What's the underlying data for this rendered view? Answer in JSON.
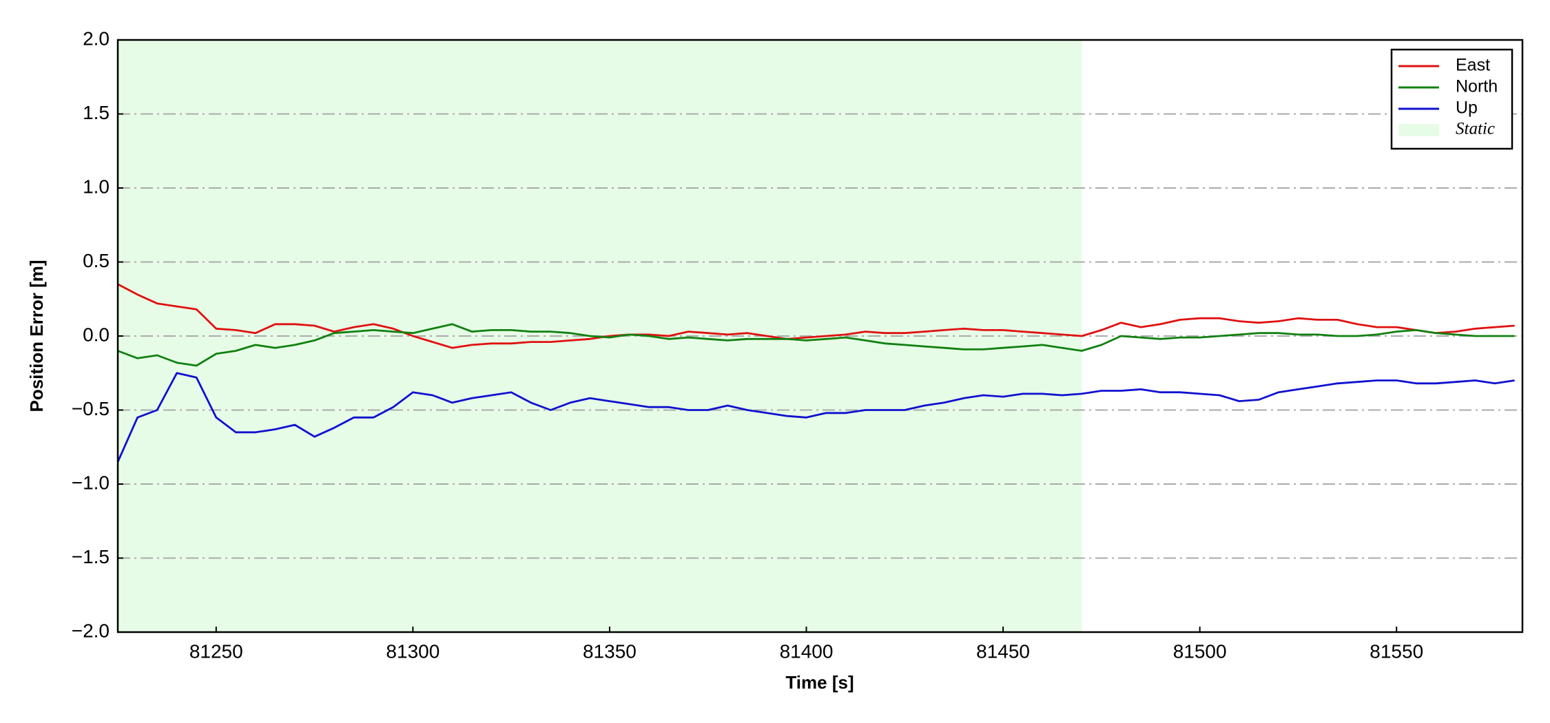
{
  "chart_data": {
    "type": "line",
    "x_label": "Time [s]",
    "y_label": "Position Error [m]",
    "x": [
      81225,
      81230,
      81235,
      81240,
      81245,
      81250,
      81255,
      81260,
      81265,
      81270,
      81275,
      81280,
      81285,
      81290,
      81295,
      81300,
      81305,
      81310,
      81315,
      81320,
      81325,
      81330,
      81335,
      81340,
      81345,
      81350,
      81355,
      81360,
      81365,
      81370,
      81375,
      81380,
      81385,
      81390,
      81395,
      81400,
      81405,
      81410,
      81415,
      81420,
      81425,
      81430,
      81435,
      81440,
      81445,
      81450,
      81455,
      81460,
      81465,
      81470,
      81475,
      81480,
      81485,
      81490,
      81495,
      81500,
      81505,
      81510,
      81515,
      81520,
      81525,
      81530,
      81535,
      81540,
      81545,
      81550,
      81555,
      81560,
      81565,
      81570,
      81575,
      81580
    ],
    "series": [
      {
        "name": "East",
        "color": "#e01010",
        "values": [
          0.35,
          0.28,
          0.22,
          0.2,
          0.18,
          0.05,
          0.04,
          0.02,
          0.08,
          0.08,
          0.07,
          0.03,
          0.06,
          0.08,
          0.05,
          0.0,
          -0.04,
          -0.08,
          -0.06,
          -0.05,
          -0.05,
          -0.04,
          -0.04,
          -0.03,
          -0.02,
          0.0,
          0.01,
          0.01,
          0.0,
          0.03,
          0.02,
          0.01,
          0.02,
          0.0,
          -0.02,
          -0.01,
          0.0,
          0.01,
          0.03,
          0.02,
          0.02,
          0.03,
          0.04,
          0.05,
          0.04,
          0.04,
          0.03,
          0.02,
          0.01,
          0.0,
          0.04,
          0.09,
          0.06,
          0.08,
          0.11,
          0.12,
          0.12,
          0.1,
          0.09,
          0.1,
          0.12,
          0.11,
          0.11,
          0.08,
          0.06,
          0.06,
          0.04,
          0.02,
          0.03,
          0.05,
          0.06,
          0.07
        ]
      },
      {
        "name": "North",
        "color": "#108010",
        "values": [
          -0.1,
          -0.15,
          -0.13,
          -0.18,
          -0.2,
          -0.12,
          -0.1,
          -0.06,
          -0.08,
          -0.06,
          -0.03,
          0.02,
          0.03,
          0.04,
          0.03,
          0.02,
          0.05,
          0.08,
          0.03,
          0.04,
          0.04,
          0.03,
          0.03,
          0.02,
          0.0,
          -0.01,
          0.01,
          0.0,
          -0.02,
          -0.01,
          -0.02,
          -0.03,
          -0.02,
          -0.02,
          -0.02,
          -0.03,
          -0.02,
          -0.01,
          -0.03,
          -0.05,
          -0.06,
          -0.07,
          -0.08,
          -0.09,
          -0.09,
          -0.08,
          -0.07,
          -0.06,
          -0.08,
          -0.1,
          -0.06,
          0.0,
          -0.01,
          -0.02,
          -0.01,
          -0.01,
          0.0,
          0.01,
          0.02,
          0.02,
          0.01,
          0.01,
          0.0,
          0.0,
          0.01,
          0.03,
          0.04,
          0.02,
          0.01,
          0.0,
          0.0,
          0.0
        ]
      },
      {
        "name": "Up",
        "color": "#1010d0",
        "values": [
          -0.85,
          -0.55,
          -0.5,
          -0.25,
          -0.28,
          -0.55,
          -0.65,
          -0.65,
          -0.63,
          -0.6,
          -0.68,
          -0.62,
          -0.55,
          -0.55,
          -0.48,
          -0.38,
          -0.4,
          -0.45,
          -0.42,
          -0.4,
          -0.38,
          -0.45,
          -0.5,
          -0.45,
          -0.42,
          -0.44,
          -0.46,
          -0.48,
          -0.48,
          -0.5,
          -0.5,
          -0.47,
          -0.5,
          -0.52,
          -0.54,
          -0.55,
          -0.52,
          -0.52,
          -0.5,
          -0.5,
          -0.5,
          -0.47,
          -0.45,
          -0.42,
          -0.4,
          -0.41,
          -0.39,
          -0.39,
          -0.4,
          -0.39,
          -0.37,
          -0.37,
          -0.36,
          -0.38,
          -0.38,
          -0.39,
          -0.4,
          -0.44,
          -0.43,
          -0.38,
          -0.36,
          -0.34,
          -0.32,
          -0.31,
          -0.3,
          -0.3,
          -0.32,
          -0.32,
          -0.31,
          -0.3,
          -0.32,
          -0.3
        ]
      }
    ],
    "shaded_region": {
      "label": "Static",
      "xrange": [
        81225,
        81470
      ],
      "color": "#e6fce6"
    },
    "xlim": [
      81225,
      81582
    ],
    "xticks": [
      81250,
      81300,
      81350,
      81400,
      81450,
      81500,
      81550
    ],
    "ylim": [
      -2,
      2
    ],
    "yticks": [
      {
        "value": -2,
        "label": "−2.0"
      },
      {
        "value": -1.5,
        "label": "−1.5"
      },
      {
        "value": -1,
        "label": "−1.0"
      },
      {
        "value": -0.5,
        "label": "−0.5"
      },
      {
        "value": 0,
        "label": "0.0"
      },
      0.5,
      {
        "value": 1,
        "label": "1.0"
      },
      1.5,
      {
        "value": 2,
        "label": "2.0"
      }
    ],
    "grid": true,
    "legend": "upper right"
  }
}
